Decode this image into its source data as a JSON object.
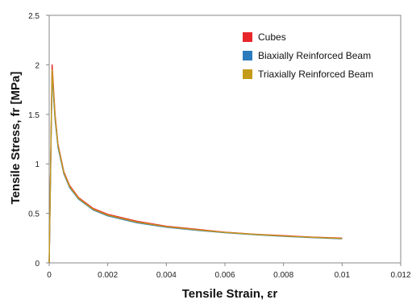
{
  "chart_data": {
    "type": "line",
    "title": "",
    "xlabel": "Tensile Strain, εr",
    "ylabel": "Tensile Stress, fr [MPa]",
    "xlim": [
      0,
      0.012
    ],
    "ylim": [
      0,
      2.5
    ],
    "x_ticks": [
      "0",
      "0.002",
      "0.004",
      "0.006",
      "0.008",
      "0.01",
      "0.012"
    ],
    "y_ticks": [
      "0",
      "0.5",
      "1",
      "1.5",
      "2",
      "2.5"
    ],
    "grid": false,
    "legend_position": "top-right",
    "series": [
      {
        "name": "Cubes",
        "color": "#e8262a",
        "x": [
          0,
          0.0001,
          0.0002,
          0.0003,
          0.0005,
          0.0007,
          0.001,
          0.0015,
          0.002,
          0.003,
          0.004,
          0.005,
          0.006,
          0.007,
          0.008,
          0.009,
          0.01
        ],
        "y": [
          0,
          2.0,
          1.5,
          1.2,
          0.92,
          0.78,
          0.66,
          0.55,
          0.49,
          0.42,
          0.37,
          0.34,
          0.31,
          0.29,
          0.275,
          0.26,
          0.25
        ]
      },
      {
        "name": "Biaxially Reinforced Beam",
        "color": "#2b7bbd",
        "x": [
          0,
          0.0001,
          0.0002,
          0.0003,
          0.0005,
          0.0007,
          0.001,
          0.0015,
          0.002,
          0.003,
          0.004,
          0.005,
          0.006,
          0.007,
          0.008,
          0.009,
          0.01
        ],
        "y": [
          0,
          1.9,
          1.45,
          1.17,
          0.9,
          0.76,
          0.645,
          0.535,
          0.475,
          0.405,
          0.36,
          0.33,
          0.305,
          0.285,
          0.268,
          0.255,
          0.243
        ]
      },
      {
        "name": "Triaxially Reinforced Beam",
        "color": "#c49a1a",
        "x": [
          0,
          0.0001,
          0.0002,
          0.0003,
          0.0005,
          0.0007,
          0.001,
          0.0015,
          0.002,
          0.003,
          0.004,
          0.005,
          0.006,
          0.007,
          0.008,
          0.009,
          0.01
        ],
        "y": [
          0,
          1.95,
          1.48,
          1.19,
          0.91,
          0.77,
          0.652,
          0.542,
          0.482,
          0.412,
          0.365,
          0.335,
          0.308,
          0.288,
          0.271,
          0.258,
          0.246
        ]
      }
    ]
  }
}
